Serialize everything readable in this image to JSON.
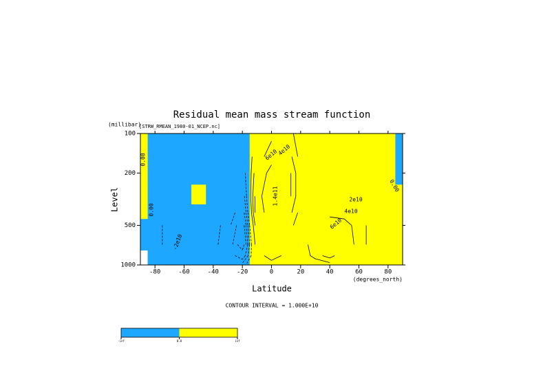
{
  "chart_data": {
    "type": "contour",
    "title": "Residual mean mass stream function",
    "subtitle": "[STRW_RMEAN_1980-01_NCEP.nc]",
    "y_unit": "(millibar)",
    "ylabel": "Level",
    "xlabel": "Latitude",
    "x_unit": "(degrees_north)",
    "footnote": "CONTOUR INTERVAL = 1.000E+10",
    "xlim": [
      -90,
      90
    ],
    "xticks": [
      -80,
      -60,
      -40,
      -20,
      0,
      20,
      40,
      60,
      80
    ],
    "ylim": [
      1000,
      100
    ],
    "yticks": [
      100,
      200,
      500,
      1000
    ],
    "ylog": true,
    "x": [
      -90,
      -80,
      -70,
      -60,
      -50,
      -40,
      -30,
      -20,
      -10,
      0,
      10,
      20,
      30,
      40,
      50,
      60,
      70,
      80,
      90
    ],
    "y": [
      100,
      150,
      200,
      300,
      400,
      500,
      700,
      850,
      1000
    ],
    "z": [
      [
        0.5,
        -0.5,
        -0.5,
        -0.5,
        -0.5,
        -0.5,
        -0.5,
        -1,
        2,
        5,
        6,
        2,
        1,
        1,
        1,
        1,
        1,
        0.5,
        -0.5
      ],
      [
        0.5,
        -0.5,
        -0.5,
        -0.5,
        -0.5,
        -1,
        -1,
        -2,
        4,
        8,
        8,
        3,
        2,
        1,
        1,
        1,
        1,
        0.5,
        -0.5
      ],
      [
        0.5,
        -0.5,
        -0.5,
        -0.5,
        -1,
        -1,
        -2,
        -4,
        6,
        12,
        10,
        4,
        2,
        1,
        1,
        1,
        0.5,
        0.5,
        -0.5
      ],
      [
        0.5,
        -1,
        -1,
        -1,
        0.5,
        -2,
        -3,
        -6,
        8,
        14,
        10,
        4,
        2,
        2,
        2,
        1,
        0.5,
        0.5,
        0.5
      ],
      [
        0.5,
        -1,
        -2,
        -2,
        -2,
        -3,
        -4,
        -8,
        8,
        12,
        8,
        3,
        2,
        3,
        3,
        2,
        1,
        0.5,
        0.5
      ],
      [
        -0.5,
        -1,
        -3,
        -4,
        -3,
        -3,
        -5,
        -10,
        6,
        10,
        6,
        2,
        4,
        6,
        5,
        3,
        1,
        0.5,
        0.5
      ],
      [
        -0.5,
        -1,
        -3,
        -4,
        -3,
        -3,
        -6,
        -12,
        4,
        8,
        4,
        2,
        6,
        8,
        6,
        3,
        1,
        0.5,
        0.5
      ],
      [
        null,
        -1,
        -2,
        -3,
        -2,
        -2,
        -4,
        -8,
        2,
        6,
        3,
        2,
        5,
        7,
        4,
        2,
        1,
        0.5,
        0.5
      ],
      [
        null,
        -0.5,
        -1,
        -1,
        -1,
        -1,
        -2,
        -3,
        1,
        2,
        1,
        1,
        2,
        3,
        2,
        1,
        0.5,
        0.5,
        0.5
      ]
    ],
    "fill_threshold": 0,
    "fill_colors": [
      "#1ea7ff",
      "#ffff00"
    ],
    "contour_levels": [
      -12,
      -10,
      -8,
      -6,
      -4,
      -2,
      2,
      4,
      6,
      8,
      10,
      12,
      14
    ],
    "colorbar_labels": [
      "-inf",
      "0.0",
      "inf"
    ],
    "annotations": [
      "0.00",
      "0.00",
      "0.00",
      "-2e10",
      "6e10",
      "4e10",
      "1.4e11",
      "2e10",
      "4e10",
      "6e10"
    ]
  }
}
